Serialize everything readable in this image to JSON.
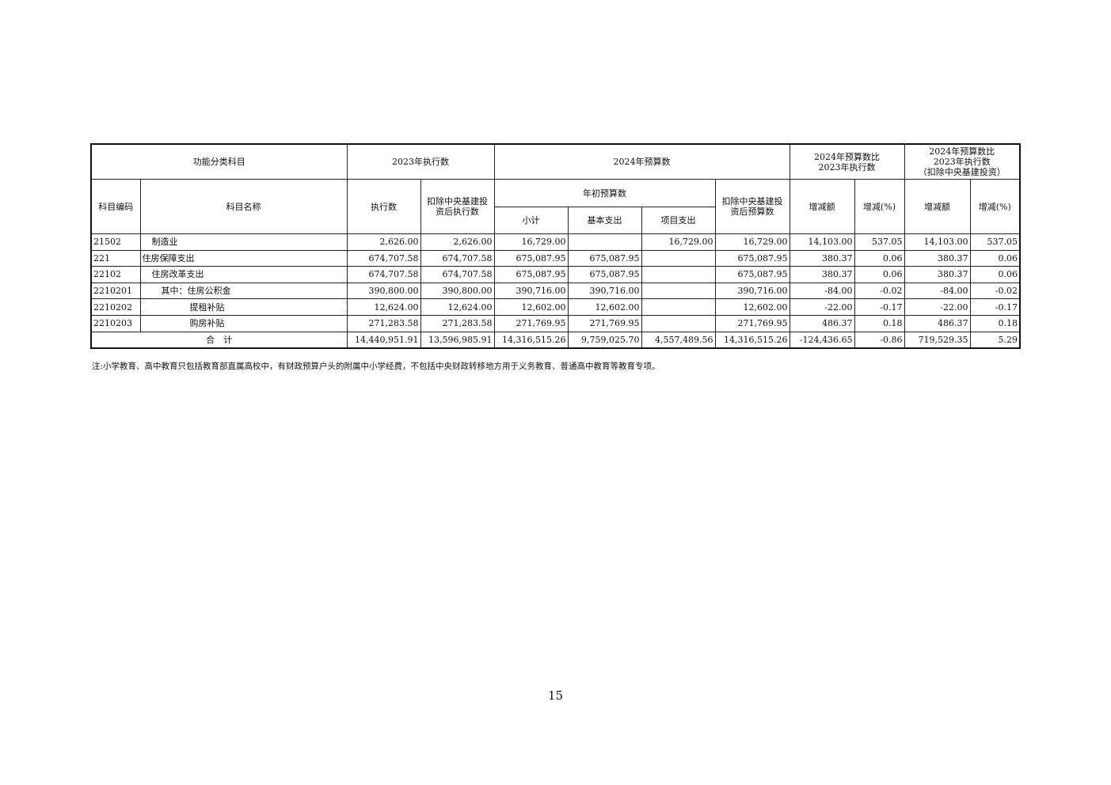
{
  "headers": {
    "func_class": "功能分类科目",
    "exec_2023": "2023年执行数",
    "budget_2024": "2024年预算数",
    "cmp1": [
      "2024年预算数比",
      "2023年执行数"
    ],
    "cmp2": [
      "2024年预算数比",
      "2023年执行数",
      "（扣除中央基建投资）"
    ],
    "code": "科目编码",
    "name": "科目名称",
    "exec": "执行数",
    "exec_excl": [
      "扣除中央基建投",
      "资后执行数"
    ],
    "initial_budget": "年初预算数",
    "budget_excl": [
      "扣除中央基建投",
      "资后预算数"
    ],
    "change_amt": "增减额",
    "change_pct": "增减(%)",
    "change_amt2": "增减额",
    "change_pct2": "增减(%)",
    "subtotal": "小计",
    "basic": "基本支出",
    "project": "项目支出"
  },
  "rows": [
    {
      "code": "21502",
      "name": "制造业",
      "indent": 1,
      "values": [
        "2,626.00",
        "2,626.00",
        "16,729.00",
        "",
        "16,729.00",
        "16,729.00",
        "14,103.00",
        "537.05",
        "14,103.00",
        "537.05"
      ]
    },
    {
      "code": "221",
      "name": "住房保障支出",
      "indent": 0,
      "values": [
        "674,707.58",
        "674,707.58",
        "675,087.95",
        "675,087.95",
        "",
        "675,087.95",
        "380.37",
        "0.06",
        "380.37",
        "0.06"
      ]
    },
    {
      "code": "22102",
      "name": "住房改革支出",
      "indent": 1,
      "values": [
        "674,707.58",
        "674,707.58",
        "675,087.95",
        "675,087.95",
        "",
        "675,087.95",
        "380.37",
        "0.06",
        "380.37",
        "0.06"
      ]
    },
    {
      "code": "2210201",
      "name": "其中：住房公积金",
      "indent": 2,
      "values": [
        "390,800.00",
        "390,800.00",
        "390,716.00",
        "390,716.00",
        "",
        "390,716.00",
        "-84.00",
        "-0.02",
        "-84.00",
        "-0.02"
      ]
    },
    {
      "code": "2210202",
      "name": "提租补贴",
      "indent": 5,
      "values": [
        "12,624.00",
        "12,624.00",
        "12,602.00",
        "12,602.00",
        "",
        "12,602.00",
        "-22.00",
        "-0.17",
        "-22.00",
        "-0.17"
      ]
    },
    {
      "code": "2210203",
      "name": "购房补贴",
      "indent": 5,
      "values": [
        "271,283.58",
        "271,283.58",
        "271,769.95",
        "271,769.95",
        "",
        "271,769.95",
        "486.37",
        "0.18",
        "486.37",
        "0.18"
      ]
    }
  ],
  "total": {
    "label": "合　计",
    "values": [
      "14,440,951.91",
      "13,596,985.91",
      "14,316,515.26",
      "9,759,025.70",
      "4,557,489.56",
      "14,316,515.26",
      "-124,436.65",
      "-0.86",
      "719,529.35",
      "5.29"
    ]
  },
  "note": "注:小学教育、高中教育只包括教育部直属高校中，有财政预算户头的附属中小学经费，不包括中央财政转移地方用于义务教育、普通高中教育等教育专项。",
  "page_number": "15"
}
